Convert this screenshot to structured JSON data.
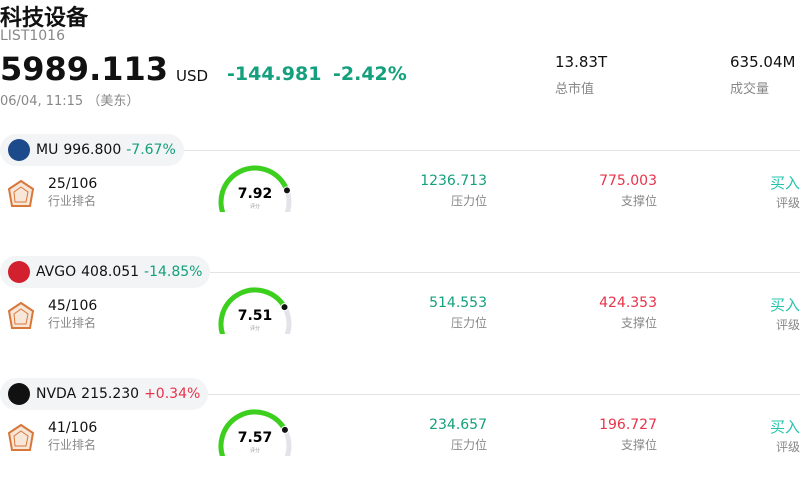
{
  "header": {
    "title": "科技设备",
    "code": "LIST1016",
    "price": "5989.113",
    "currency": "USD",
    "change": "-144.981",
    "change_pct": "-2.42%",
    "datetime": "06/04, 11:15 （美东）"
  },
  "stats": [
    {
      "value": "13.83T",
      "label": "总市值"
    },
    {
      "value": "635.04M",
      "label": "成交量"
    }
  ],
  "stocks": [
    {
      "ticker": "MU",
      "price": "996.800",
      "change": "-7.67%",
      "rank": "25/106",
      "rank_label": "行业排名",
      "score": 7.92,
      "score_label": "评分",
      "resistance": "1236.713",
      "resistance_label": "压力位",
      "support": "775.003",
      "support_label": "支撑位",
      "rating": "买入",
      "rating_label": "评级"
    },
    {
      "ticker": "AVGO",
      "price": "408.051",
      "change": "-14.85%",
      "rank": "45/106",
      "rank_label": "行业排名",
      "score": 7.51,
      "score_label": "评分",
      "resistance": "514.553",
      "resistance_label": "压力位",
      "support": "424.353",
      "support_label": "支撑位",
      "rating": "买入",
      "rating_label": "评级"
    },
    {
      "ticker": "NVDA",
      "price": "215.230",
      "change": "+0.34%",
      "rank": "41/106",
      "rank_label": "行业排名",
      "score": 7.57,
      "score_label": "评分",
      "resistance": "234.657",
      "resistance_label": "压力位",
      "support": "196.727",
      "support_label": "支撑位",
      "rating": "买入",
      "rating_label": "评级"
    }
  ]
}
